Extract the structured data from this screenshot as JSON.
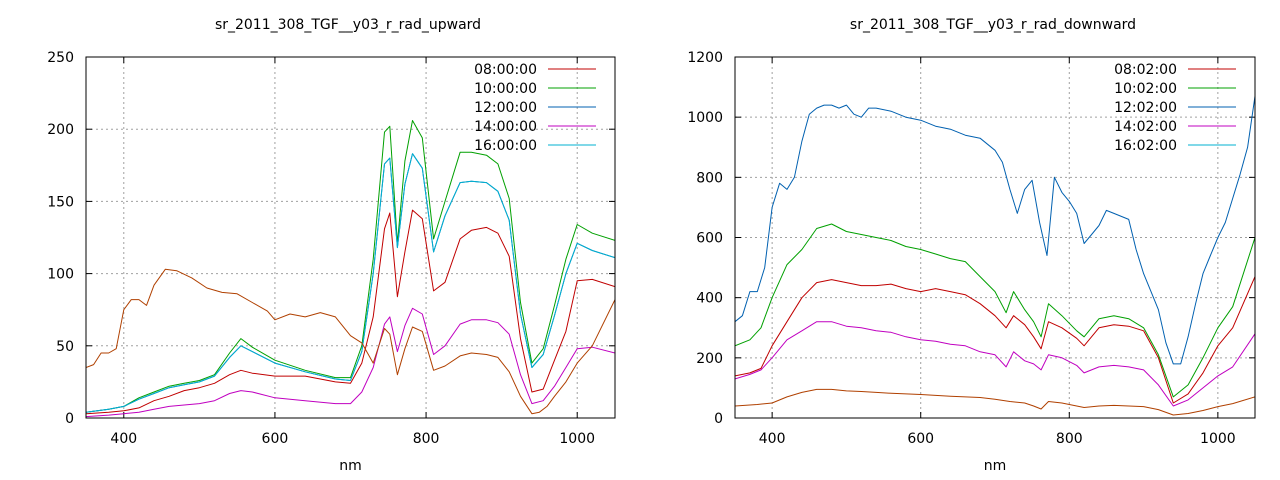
{
  "colors": {
    "s1": "#c00000",
    "s2": "#00a000",
    "s3": "#0060b0",
    "s4": "#c000c0",
    "s5": "#00b0d0",
    "extra": "#b04000"
  },
  "chart_data": [
    {
      "type": "line",
      "title": "sr_2011_308_TGF__y03_r_rad_upward",
      "xlabel": "nm",
      "ylabel": "",
      "xlim": [
        350,
        1050
      ],
      "ylim": [
        0,
        250
      ],
      "xticks": [
        "400",
        "600",
        "800",
        "1000"
      ],
      "yticks": [
        "0",
        "50",
        "100",
        "150",
        "200",
        "250"
      ],
      "grid": true,
      "legend_position": "top-right",
      "series": [
        {
          "name": "08:00:00",
          "color_key": "s1",
          "x": [
            350,
            380,
            400,
            420,
            440,
            460,
            480,
            500,
            520,
            540,
            555,
            570,
            600,
            640,
            680,
            700,
            715,
            730,
            745,
            752,
            762,
            772,
            782,
            795,
            810,
            825,
            845,
            860,
            880,
            895,
            910,
            925,
            940,
            955,
            970,
            985,
            1000,
            1020,
            1050
          ],
          "y": [
            3,
            4,
            5,
            7,
            12,
            15,
            19,
            21,
            24,
            30,
            33,
            31,
            29,
            29,
            25,
            24,
            38,
            70,
            131,
            142,
            84,
            115,
            144,
            138,
            88,
            94,
            124,
            130,
            132,
            128,
            112,
            55,
            18,
            20,
            40,
            60,
            95,
            96,
            91
          ]
        },
        {
          "name": "10:00:00",
          "color_key": "s2",
          "x": [
            350,
            380,
            400,
            420,
            440,
            460,
            480,
            500,
            520,
            540,
            555,
            570,
            600,
            640,
            680,
            700,
            715,
            730,
            745,
            752,
            762,
            772,
            782,
            795,
            810,
            825,
            845,
            860,
            880,
            895,
            910,
            925,
            940,
            955,
            970,
            985,
            1000,
            1020,
            1050
          ],
          "y": [
            4,
            6,
            8,
            14,
            18,
            22,
            24,
            26,
            30,
            45,
            55,
            49,
            40,
            33,
            28,
            28,
            50,
            110,
            198,
            202,
            121,
            178,
            206,
            194,
            124,
            150,
            184,
            184,
            182,
            176,
            152,
            80,
            38,
            48,
            78,
            110,
            134,
            128,
            123
          ]
        },
        {
          "name": "12:00:00",
          "color_key": "s3",
          "x": [
            350,
            380,
            400,
            420,
            440,
            460,
            480,
            500,
            520,
            540,
            555,
            570,
            600,
            640,
            680,
            700,
            715,
            730,
            745,
            752,
            762,
            772,
            782,
            795,
            810,
            825,
            845,
            860,
            880,
            895,
            910,
            925,
            940,
            955,
            970,
            985,
            1000,
            1020,
            1050
          ],
          "y": [
            4,
            6,
            8,
            13,
            17,
            21,
            23,
            25,
            29,
            42,
            50,
            46,
            38,
            32,
            27,
            26,
            46,
            100,
            176,
            180,
            118,
            162,
            183,
            173,
            115,
            140,
            163,
            164,
            163,
            157,
            137,
            72,
            35,
            44,
            71,
            100,
            121,
            116,
            111
          ]
        },
        {
          "name": "14:00:00",
          "color_key": "s4",
          "x": [
            350,
            380,
            400,
            420,
            440,
            460,
            480,
            500,
            520,
            540,
            555,
            570,
            600,
            640,
            680,
            700,
            715,
            730,
            745,
            752,
            762,
            772,
            782,
            795,
            810,
            825,
            845,
            860,
            880,
            895,
            910,
            925,
            940,
            955,
            970,
            985,
            1000,
            1020,
            1050
          ],
          "y": [
            1,
            2,
            3,
            4,
            6,
            8,
            9,
            10,
            12,
            17,
            19,
            18,
            14,
            12,
            10,
            10,
            18,
            35,
            65,
            70,
            46,
            64,
            76,
            72,
            44,
            50,
            65,
            68,
            68,
            66,
            58,
            30,
            10,
            12,
            22,
            35,
            48,
            49,
            45
          ]
        },
        {
          "name": "16:00:00",
          "color_key": "s5",
          "x": [
            350,
            380,
            400,
            420,
            440,
            460,
            480,
            500,
            520,
            540,
            555,
            570,
            600,
            640,
            680,
            700,
            715,
            730,
            745,
            752,
            762,
            772,
            782,
            795,
            810,
            825,
            845,
            860,
            880,
            895,
            910,
            925,
            940,
            955,
            970,
            985,
            1000,
            1020,
            1050
          ],
          "y": [
            4,
            6,
            8,
            13,
            17,
            21,
            23,
            25,
            29,
            42,
            50,
            46,
            38,
            32,
            27,
            26,
            46,
            100,
            176,
            180,
            118,
            162,
            183,
            173,
            115,
            140,
            163,
            164,
            163,
            157,
            137,
            72,
            35,
            44,
            71,
            100,
            121,
            116,
            111
          ]
        },
        {
          "name": "",
          "color_key": "extra",
          "x": [
            350,
            360,
            370,
            380,
            390,
            400,
            410,
            420,
            430,
            440,
            455,
            470,
            490,
            510,
            530,
            550,
            570,
            590,
            600,
            620,
            640,
            660,
            680,
            700,
            715,
            730,
            745,
            752,
            762,
            772,
            782,
            795,
            810,
            825,
            845,
            860,
            880,
            895,
            910,
            925,
            940,
            950,
            960,
            970,
            985,
            1000,
            1020,
            1050
          ],
          "y": [
            35,
            37,
            45,
            45,
            48,
            75,
            82,
            82,
            78,
            92,
            103,
            102,
            97,
            90,
            87,
            86,
            80,
            74,
            68,
            72,
            70,
            73,
            70,
            57,
            52,
            38,
            62,
            58,
            30,
            48,
            63,
            60,
            33,
            36,
            43,
            45,
            44,
            42,
            32,
            15,
            3,
            4,
            8,
            15,
            25,
            38,
            50,
            82
          ]
        }
      ]
    },
    {
      "type": "line",
      "title": "sr_2011_308_TGF__y03_r_rad_downward",
      "xlabel": "nm",
      "ylabel": "",
      "xlim": [
        350,
        1050
      ],
      "ylim": [
        0,
        1200
      ],
      "xticks": [
        "400",
        "600",
        "800",
        "1000"
      ],
      "yticks": [
        "0",
        "200",
        "400",
        "600",
        "800",
        "1000",
        "1200"
      ],
      "grid": true,
      "legend_position": "top-right",
      "series": [
        {
          "name": "08:02:00",
          "color_key": "s1",
          "x": [
            350,
            370,
            385,
            400,
            420,
            440,
            460,
            480,
            500,
            520,
            540,
            560,
            580,
            600,
            620,
            640,
            660,
            680,
            700,
            715,
            725,
            740,
            752,
            762,
            772,
            790,
            810,
            820,
            840,
            860,
            880,
            900,
            920,
            940,
            960,
            980,
            1000,
            1020,
            1050
          ],
          "y": [
            140,
            150,
            165,
            240,
            320,
            400,
            450,
            460,
            450,
            440,
            440,
            445,
            430,
            420,
            430,
            420,
            410,
            380,
            340,
            300,
            340,
            310,
            270,
            230,
            320,
            300,
            265,
            240,
            300,
            310,
            305,
            290,
            200,
            50,
            80,
            150,
            240,
            300,
            470
          ]
        },
        {
          "name": "10:02:00",
          "color_key": "s2",
          "x": [
            350,
            370,
            385,
            400,
            420,
            440,
            460,
            480,
            500,
            520,
            540,
            560,
            580,
            600,
            620,
            640,
            660,
            680,
            700,
            715,
            725,
            740,
            752,
            762,
            772,
            790,
            810,
            820,
            840,
            860,
            880,
            900,
            920,
            940,
            960,
            980,
            1000,
            1020,
            1050
          ],
          "y": [
            240,
            260,
            300,
            400,
            510,
            560,
            630,
            645,
            620,
            610,
            600,
            590,
            570,
            560,
            545,
            530,
            520,
            470,
            420,
            350,
            420,
            360,
            320,
            270,
            380,
            340,
            290,
            270,
            330,
            340,
            330,
            300,
            210,
            70,
            110,
            200,
            300,
            370,
            600
          ]
        },
        {
          "name": "12:02:00",
          "color_key": "s3",
          "x": [
            350,
            360,
            370,
            380,
            390,
            400,
            410,
            420,
            430,
            440,
            450,
            460,
            470,
            480,
            490,
            500,
            510,
            520,
            530,
            540,
            560,
            580,
            600,
            620,
            640,
            660,
            680,
            700,
            710,
            720,
            730,
            740,
            750,
            760,
            770,
            780,
            790,
            800,
            810,
            820,
            830,
            840,
            850,
            860,
            870,
            880,
            890,
            900,
            910,
            920,
            930,
            940,
            950,
            960,
            970,
            980,
            990,
            1000,
            1010,
            1020,
            1030,
            1040,
            1050
          ],
          "y": [
            320,
            340,
            420,
            420,
            500,
            700,
            780,
            760,
            800,
            920,
            1010,
            1030,
            1040,
            1040,
            1030,
            1040,
            1010,
            1000,
            1030,
            1030,
            1020,
            1000,
            990,
            970,
            960,
            940,
            930,
            890,
            850,
            760,
            680,
            760,
            790,
            650,
            540,
            800,
            750,
            720,
            680,
            580,
            610,
            640,
            690,
            680,
            670,
            660,
            560,
            480,
            420,
            360,
            250,
            180,
            180,
            270,
            380,
            480,
            540,
            600,
            650,
            730,
            810,
            900,
            1070
          ]
        },
        {
          "name": "14:02:00",
          "color_key": "s4",
          "x": [
            350,
            370,
            385,
            400,
            420,
            440,
            460,
            480,
            500,
            520,
            540,
            560,
            580,
            600,
            620,
            640,
            660,
            680,
            700,
            715,
            725,
            740,
            752,
            762,
            772,
            790,
            810,
            820,
            840,
            860,
            880,
            900,
            920,
            940,
            960,
            980,
            1000,
            1020,
            1050
          ],
          "y": [
            130,
            145,
            160,
            200,
            260,
            290,
            320,
            320,
            305,
            300,
            290,
            285,
            270,
            260,
            255,
            245,
            240,
            220,
            210,
            170,
            220,
            190,
            180,
            160,
            210,
            200,
            175,
            150,
            170,
            175,
            170,
            160,
            110,
            40,
            60,
            100,
            140,
            170,
            280
          ]
        },
        {
          "name": "16:02:00",
          "color_key": "s5",
          "x": [],
          "y": []
        },
        {
          "name": "",
          "color_key": "extra",
          "x": [
            350,
            380,
            400,
            420,
            440,
            460,
            480,
            500,
            520,
            540,
            560,
            580,
            600,
            620,
            640,
            660,
            680,
            700,
            720,
            740,
            752,
            762,
            772,
            790,
            810,
            820,
            840,
            860,
            880,
            900,
            920,
            940,
            960,
            980,
            1000,
            1020,
            1050
          ],
          "y": [
            40,
            45,
            50,
            70,
            85,
            95,
            95,
            90,
            88,
            85,
            82,
            80,
            78,
            75,
            72,
            70,
            68,
            62,
            55,
            50,
            40,
            30,
            55,
            50,
            40,
            35,
            40,
            42,
            40,
            38,
            28,
            10,
            15,
            25,
            38,
            48,
            70
          ]
        }
      ]
    }
  ]
}
